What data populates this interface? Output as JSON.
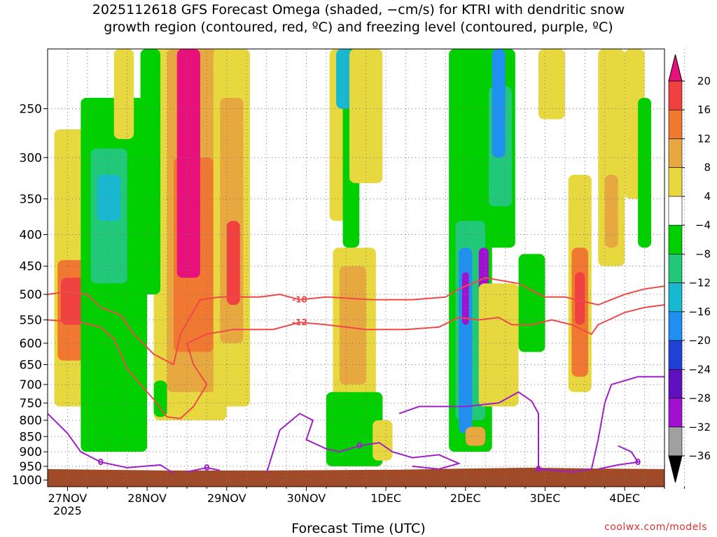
{
  "title_line1": "2025112618 GFS Forecast Omega (shaded, −cm/s) for KTRI with dendritic snow",
  "title_line2": "growth region (contoured, red, ºC) and freezing level (contoured, purple, ºC)",
  "credit": "coolwx.com/models",
  "colors": {
    "temp_contour": "#f04848",
    "freeze_contour": "#a020c8",
    "ground": "#a04a28",
    "grid": "#777777"
  },
  "chart_data": {
    "type": "heatmap",
    "title": "2025112618 GFS Forecast Omega (shaded, −cm/s) for KTRI with dendritic snow growth region (contoured, red, ºC) and freezing level (contoured, purple, ºC)",
    "xlabel": "Forecast Time (UTC)",
    "ylabel": "",
    "x_ticks": [
      "27NOV",
      "28NOV",
      "29NOV",
      "30NOV",
      "1DEC",
      "2DEC",
      "3DEC",
      "4DEC"
    ],
    "x_tick_sublabel": "2025",
    "x_range_hours": [
      -6,
      180
    ],
    "y_ticks": [
      250,
      300,
      350,
      400,
      450,
      500,
      550,
      600,
      650,
      700,
      750,
      800,
      850,
      900,
      950,
      1000
    ],
    "y_range_hPa": [
      200,
      1025
    ],
    "y_scale": "log",
    "grid": true,
    "colorbar": {
      "labels": [
        "20",
        "16",
        "12",
        "8",
        "4",
        "−4",
        "−8",
        "−12",
        "−16",
        "−20",
        "−24",
        "−28",
        "−32",
        "−36"
      ],
      "bins": [
        {
          "range": [
            20,
            999
          ],
          "color": "#e8107a"
        },
        {
          "range": [
            16,
            20
          ],
          "color": "#f04040"
        },
        {
          "range": [
            12,
            16
          ],
          "color": "#f07830"
        },
        {
          "range": [
            8,
            12
          ],
          "color": "#e8a840"
        },
        {
          "range": [
            4,
            8
          ],
          "color": "#e8d840"
        },
        {
          "range": [
            -4,
            4
          ],
          "color": "#ffffff"
        },
        {
          "range": [
            -8,
            -4
          ],
          "color": "#00d000"
        },
        {
          "range": [
            -12,
            -8
          ],
          "color": "#20c878"
        },
        {
          "range": [
            -16,
            -12
          ],
          "color": "#18b8d0"
        },
        {
          "range": [
            -20,
            -16
          ],
          "color": "#2090f0"
        },
        {
          "range": [
            -24,
            -20
          ],
          "color": "#2040d8"
        },
        {
          "range": [
            -28,
            -24
          ],
          "color": "#6010c0"
        },
        {
          "range": [
            -32,
            -28
          ],
          "color": "#a010d0"
        },
        {
          "range": [
            -36,
            -32
          ],
          "color": "#a0a0a0"
        },
        {
          "range": [
            -999,
            -36
          ],
          "color": "#000000"
        }
      ]
    },
    "omega_regions": [
      {
        "t": [
          -4,
          14
        ],
        "p": [
          270,
          760
        ],
        "omega": 6
      },
      {
        "t": [
          -3,
          12
        ],
        "p": [
          440,
          640
        ],
        "omega": 12
      },
      {
        "t": [
          -2,
          6
        ],
        "p": [
          470,
          560
        ],
        "omega": 16
      },
      {
        "t": [
          4,
          24
        ],
        "p": [
          240,
          900
        ],
        "omega": -6
      },
      {
        "t": [
          7,
          18
        ],
        "p": [
          290,
          480
        ],
        "omega": -10
      },
      {
        "t": [
          9,
          16
        ],
        "p": [
          320,
          380
        ],
        "omega": -14
      },
      {
        "t": [
          14,
          20
        ],
        "p": [
          200,
          280
        ],
        "omega": 6
      },
      {
        "t": [
          26,
          48
        ],
        "p": [
          200,
          800
        ],
        "omega": 6
      },
      {
        "t": [
          30,
          45
        ],
        "p": [
          200,
          720
        ],
        "omega": 10
      },
      {
        "t": [
          32,
          44
        ],
        "p": [
          300,
          620
        ],
        "omega": 14
      },
      {
        "t": [
          33,
          40
        ],
        "p": [
          200,
          470
        ],
        "omega": 22
      },
      {
        "t": [
          44,
          55
        ],
        "p": [
          200,
          760
        ],
        "omega": 6
      },
      {
        "t": [
          46,
          53
        ],
        "p": [
          240,
          600
        ],
        "omega": 10
      },
      {
        "t": [
          48,
          52
        ],
        "p": [
          380,
          520
        ],
        "omega": 16
      },
      {
        "t": [
          26,
          30
        ],
        "p": [
          690,
          790
        ],
        "omega": -6
      },
      {
        "t": [
          22,
          28
        ],
        "p": [
          200,
          500
        ],
        "omega": -6
      },
      {
        "t": [
          80,
          93
        ],
        "p": [
          420,
          800
        ],
        "omega": 6
      },
      {
        "t": [
          82,
          90
        ],
        "p": [
          450,
          700
        ],
        "omega": 10
      },
      {
        "t": [
          79,
          84
        ],
        "p": [
          200,
          380
        ],
        "omega": 6
      },
      {
        "t": [
          83,
          88
        ],
        "p": [
          200,
          420
        ],
        "omega": -6
      },
      {
        "t": [
          81,
          86
        ],
        "p": [
          200,
          250
        ],
        "omega": -14
      },
      {
        "t": [
          85,
          95
        ],
        "p": [
          200,
          330
        ],
        "omega": 6
      },
      {
        "t": [
          78,
          95
        ],
        "p": [
          720,
          950
        ],
        "omega": -6
      },
      {
        "t": [
          92,
          98
        ],
        "p": [
          800,
          930
        ],
        "omega": 6
      },
      {
        "t": [
          115,
          128
        ],
        "p": [
          200,
          900
        ],
        "omega": -6
      },
      {
        "t": [
          117,
          126
        ],
        "p": [
          380,
          800
        ],
        "omega": -10
      },
      {
        "t": [
          118,
          122
        ],
        "p": [
          420,
          840
        ],
        "omega": -18
      },
      {
        "t": [
          119,
          121
        ],
        "p": [
          460,
          560
        ],
        "omega": -30
      },
      {
        "t": [
          124,
          127
        ],
        "p": [
          420,
          540
        ],
        "omega": -30
      },
      {
        "t": [
          126,
          135
        ],
        "p": [
          200,
          420
        ],
        "omega": -6
      },
      {
        "t": [
          127,
          134
        ],
        "p": [
          230,
          360
        ],
        "omega": -12
      },
      {
        "t": [
          128,
          132
        ],
        "p": [
          200,
          300
        ],
        "omega": -18
      },
      {
        "t": [
          120,
          126
        ],
        "p": [
          820,
          880
        ],
        "omega": 10
      },
      {
        "t": [
          124,
          136
        ],
        "p": [
          480,
          760
        ],
        "omega": 6
      },
      {
        "t": [
          136,
          144
        ],
        "p": [
          430,
          620
        ],
        "omega": -6
      },
      {
        "t": [
          142,
          150
        ],
        "p": [
          200,
          260
        ],
        "omega": 6
      },
      {
        "t": [
          151,
          158
        ],
        "p": [
          320,
          720
        ],
        "omega": 6
      },
      {
        "t": [
          152,
          157
        ],
        "p": [
          420,
          680
        ],
        "omega": 12
      },
      {
        "t": [
          153,
          156
        ],
        "p": [
          460,
          560
        ],
        "omega": 16
      },
      {
        "t": [
          160,
          168
        ],
        "p": [
          200,
          450
        ],
        "omega": 6
      },
      {
        "t": [
          162,
          166
        ],
        "p": [
          320,
          420
        ],
        "omega": 10
      },
      {
        "t": [
          168,
          174
        ],
        "p": [
          200,
          350
        ],
        "omega": 6
      },
      {
        "t": [
          172,
          176
        ],
        "p": [
          240,
          420
        ],
        "omega": -6
      }
    ],
    "contours": [
      {
        "label": "-18",
        "color": "#f04848",
        "points": [
          [
            -6,
            500
          ],
          [
            0,
            495
          ],
          [
            6,
            500
          ],
          [
            10,
            525
          ],
          [
            16,
            540
          ],
          [
            20,
            580
          ],
          [
            26,
            625
          ],
          [
            32,
            650
          ],
          [
            34,
            580
          ],
          [
            40,
            510
          ],
          [
            46,
            505
          ],
          [
            58,
            505
          ],
          [
            64,
            500
          ],
          [
            70,
            510
          ],
          [
            78,
            505
          ],
          [
            92,
            510
          ],
          [
            104,
            510
          ],
          [
            114,
            505
          ],
          [
            118,
            490
          ],
          [
            126,
            470
          ],
          [
            136,
            480
          ],
          [
            144,
            505
          ],
          [
            150,
            505
          ],
          [
            160,
            520
          ],
          [
            168,
            500
          ],
          [
            174,
            490
          ],
          [
            180,
            485
          ]
        ]
      },
      {
        "label": "-12",
        "color": "#f04848",
        "points": [
          [
            -6,
            550
          ],
          [
            4,
            555
          ],
          [
            10,
            565
          ],
          [
            14,
            590
          ],
          [
            18,
            660
          ],
          [
            22,
            700
          ],
          [
            26,
            740
          ],
          [
            30,
            790
          ],
          [
            34,
            795
          ],
          [
            38,
            760
          ],
          [
            42,
            700
          ],
          [
            38,
            650
          ],
          [
            36,
            600
          ],
          [
            42,
            580
          ],
          [
            50,
            570
          ],
          [
            62,
            570
          ],
          [
            70,
            555
          ],
          [
            78,
            560
          ],
          [
            90,
            570
          ],
          [
            102,
            570
          ],
          [
            112,
            565
          ],
          [
            118,
            545
          ],
          [
            124,
            550
          ],
          [
            130,
            545
          ],
          [
            134,
            560
          ],
          [
            140,
            560
          ],
          [
            146,
            550
          ],
          [
            152,
            560
          ],
          [
            158,
            580
          ],
          [
            160,
            560
          ],
          [
            168,
            535
          ],
          [
            174,
            525
          ],
          [
            180,
            520
          ]
        ]
      },
      {
        "label": "0",
        "color": "#a020c8",
        "points": [
          [
            -6,
            780
          ],
          [
            0,
            840
          ],
          [
            4,
            900
          ],
          [
            10,
            935
          ],
          [
            18,
            955
          ],
          [
            28,
            945
          ],
          [
            32,
            975
          ]
        ]
      },
      {
        "label": "0",
        "color": "#a020c8",
        "points": [
          [
            36,
            970
          ],
          [
            42,
            955
          ],
          [
            46,
            965
          ]
        ]
      },
      {
        "label": "0",
        "color": "#a020c8",
        "points": [
          [
            60,
            975
          ],
          [
            64,
            830
          ],
          [
            70,
            780
          ],
          [
            74,
            800
          ],
          [
            72,
            860
          ],
          [
            78,
            890
          ],
          [
            82,
            900
          ],
          [
            88,
            880
          ],
          [
            94,
            870
          ],
          [
            98,
            900
          ],
          [
            104,
            920
          ],
          [
            112,
            910
          ],
          [
            118,
            940
          ],
          [
            112,
            960
          ],
          [
            104,
            950
          ]
        ]
      },
      {
        "label": "0",
        "color": "#a020c8",
        "points": [
          [
            100,
            780
          ],
          [
            106,
            760
          ],
          [
            120,
            760
          ],
          [
            130,
            750
          ],
          [
            136,
            720
          ],
          [
            140,
            745
          ],
          [
            142,
            780
          ],
          [
            142,
            960
          ],
          [
            152,
            970
          ],
          [
            158,
            960
          ],
          [
            160,
            860
          ],
          [
            162,
            750
          ],
          [
            164,
            700
          ],
          [
            172,
            680
          ],
          [
            180,
            680
          ]
        ]
      },
      {
        "label": "0",
        "color": "#a020c8",
        "points": [
          [
            166,
            880
          ],
          [
            170,
            900
          ],
          [
            172,
            935
          ],
          [
            166,
            945
          ],
          [
            160,
            960
          ]
        ]
      }
    ],
    "ground": [
      [
        -6,
        960
      ],
      [
        30,
        965
      ],
      [
        60,
        965
      ],
      [
        100,
        962
      ],
      [
        120,
        958
      ],
      [
        140,
        955
      ],
      [
        160,
        958
      ],
      [
        180,
        960
      ]
    ]
  }
}
